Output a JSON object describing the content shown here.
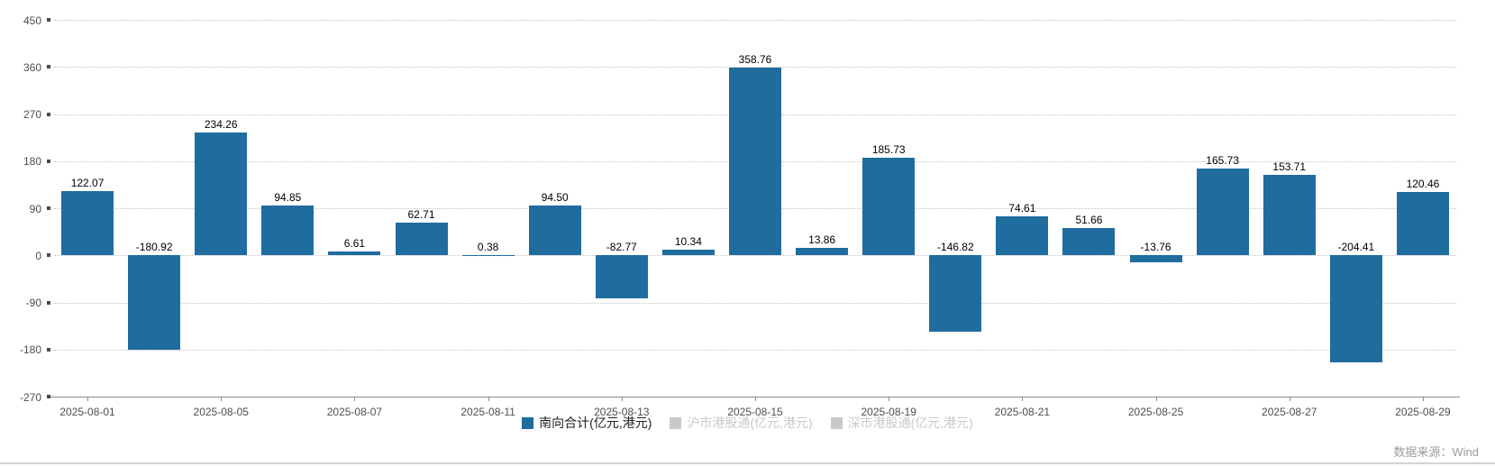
{
  "chart_data": {
    "type": "bar",
    "series": [
      {
        "name": "南向合计(亿元,港元)",
        "color": "#1f6c9f",
        "values": [
          122.07,
          -180.92,
          234.26,
          94.85,
          6.61,
          62.71,
          0.38,
          94.5,
          -82.77,
          10.34,
          358.76,
          13.86,
          185.73,
          -146.82,
          74.61,
          51.66,
          -13.76,
          165.73,
          153.71,
          -204.41,
          120.46
        ]
      }
    ],
    "value_labels": [
      "122.07",
      "-180.92",
      "234.26",
      "94.85",
      "6.61",
      "62.71",
      "0.38",
      "94.50",
      "-82.77",
      "10.34",
      "358.76",
      "13.86",
      "185.73",
      "-146.82",
      "74.61",
      "51.66",
      "-13.76",
      "165.73",
      "153.71",
      "-204.41",
      "120.46"
    ],
    "x_ticks": [
      {
        "i": 0,
        "label": "2025-08-01"
      },
      {
        "i": 2,
        "label": "2025-08-05"
      },
      {
        "i": 4,
        "label": "2025-08-07"
      },
      {
        "i": 6,
        "label": "2025-08-11"
      },
      {
        "i": 8,
        "label": "2025-08-13"
      },
      {
        "i": 10,
        "label": "2025-08-15"
      },
      {
        "i": 12,
        "label": "2025-08-19"
      },
      {
        "i": 14,
        "label": "2025-08-21"
      },
      {
        "i": 16,
        "label": "2025-08-25"
      },
      {
        "i": 18,
        "label": "2025-08-27"
      },
      {
        "i": 20,
        "label": "2025-08-29"
      }
    ],
    "y_ticks": [
      450,
      360,
      270,
      180,
      90,
      0,
      -90,
      -180,
      -270
    ],
    "ylim": [
      -270,
      450
    ],
    "grid": "dotted horizontal",
    "legend_position": "bottom-center",
    "legend": [
      {
        "label": "南向合计(亿元,港元)",
        "color": "#1f6c9f",
        "active": true
      },
      {
        "label": "沪市港股通(亿元,港元)",
        "color": "#c9c9c9",
        "active": false
      },
      {
        "label": "深市港股通(亿元,港元)",
        "color": "#c9c9c9",
        "active": false
      }
    ],
    "source_note": "数据来源：Wind",
    "colors": {
      "bar": "#1f6c9f",
      "inactive_legend": "#c9c9c9",
      "grid": "#c4c4c4",
      "axis": "#8c8c8c",
      "label_text": "#000000",
      "axis_text": "#4d4d4d",
      "source_text": "#9b9b9b"
    }
  }
}
